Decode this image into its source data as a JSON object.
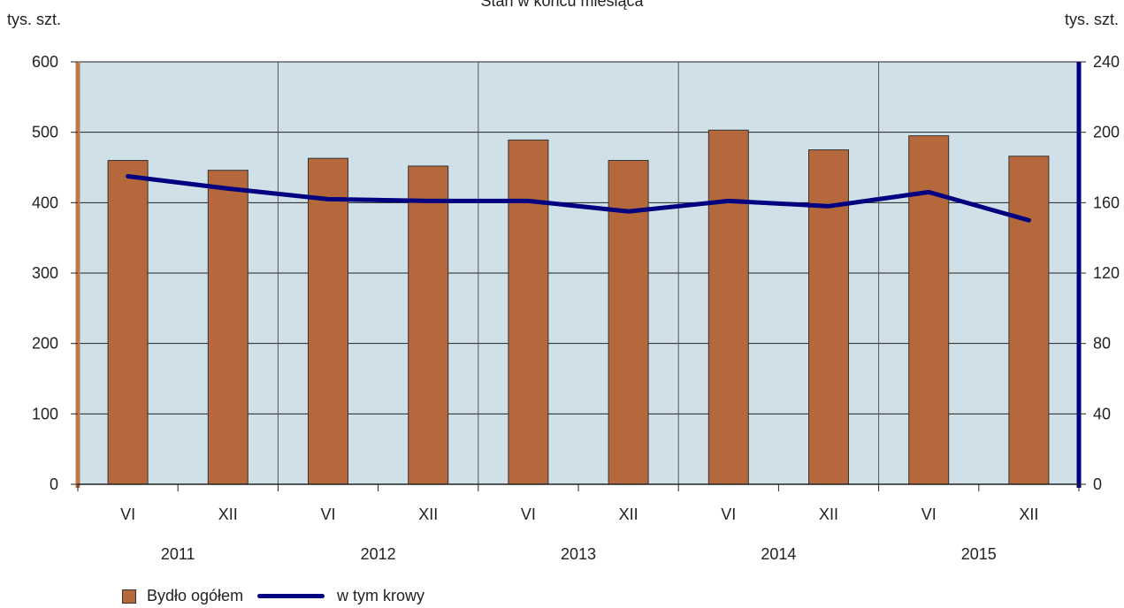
{
  "chart_data": {
    "type": "bar",
    "title": "Stan w końcu miesiąca",
    "left_axis_unit": "tys. szt.",
    "right_axis_unit": "tys. szt.",
    "categories": [
      "VI",
      "XII",
      "VI",
      "XII",
      "VI",
      "XII",
      "VI",
      "XII",
      "VI",
      "XII"
    ],
    "years": [
      "2011",
      "2012",
      "2013",
      "2014",
      "2015"
    ],
    "y_left": {
      "min": 0,
      "max": 600,
      "ticks": [
        "0",
        "100",
        "200",
        "300",
        "400",
        "500",
        "600"
      ]
    },
    "y_right": {
      "min": 0,
      "max": 240,
      "ticks": [
        "0",
        "40",
        "80",
        "120",
        "160",
        "200",
        "240"
      ]
    },
    "series": [
      {
        "name": "Bydło ogółem",
        "type": "bar",
        "axis": "left",
        "values": [
          460,
          446,
          463,
          452,
          489,
          460,
          503,
          475,
          495,
          466
        ]
      },
      {
        "name": "w tym krowy",
        "type": "line",
        "axis": "right",
        "values": [
          175,
          168,
          162,
          161,
          161,
          155,
          161,
          158,
          166,
          150
        ]
      }
    ],
    "grid": true,
    "legend_position": "bottom-left",
    "colors": {
      "bars": "#b5683c",
      "line": "#000080",
      "plot_bg": "#d0e0e8",
      "left_axis": "#c07848",
      "right_axis": "#000080"
    }
  }
}
